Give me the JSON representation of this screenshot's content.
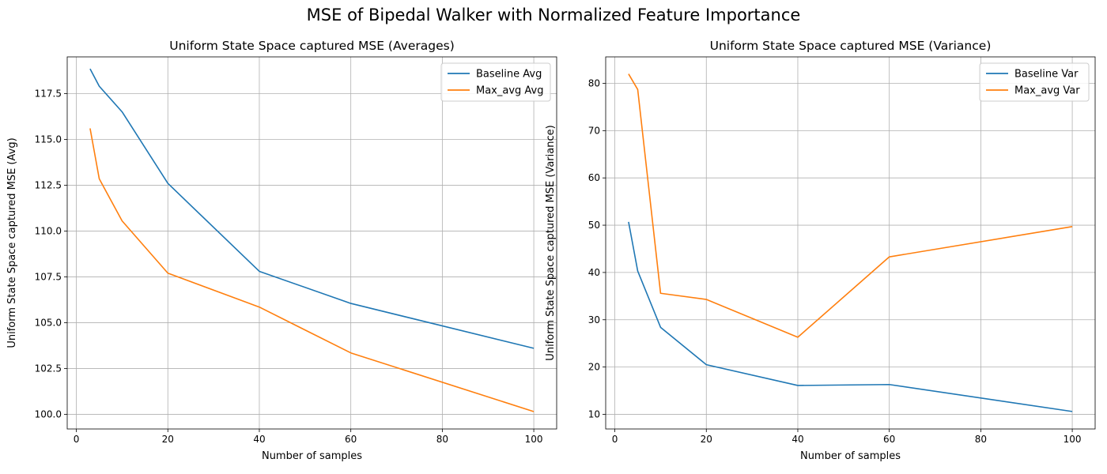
{
  "figure": {
    "suptitle": "MSE of Bipedal Walker with Normalized Feature Importance"
  },
  "chart_data": [
    {
      "type": "line",
      "title": "Uniform State Space captured MSE (Averages)",
      "xlabel": "Number of samples",
      "ylabel": "Uniform State Space captured MSE (Avg)",
      "xlim": [
        -2,
        105
      ],
      "ylim": [
        99.2,
        119.5
      ],
      "xticks": [
        0,
        20,
        40,
        60,
        80,
        100
      ],
      "yticks": [
        100.0,
        102.5,
        105.0,
        107.5,
        110.0,
        112.5,
        115.0,
        117.5
      ],
      "ytick_labels": [
        "100.0",
        "102.5",
        "105.0",
        "107.5",
        "110.0",
        "112.5",
        "115.0",
        "117.5"
      ],
      "grid": true,
      "legend_position": "upper right",
      "series": [
        {
          "name": "Baseline Avg",
          "color": "#1f77b4",
          "x": [
            3,
            5,
            10,
            20,
            40,
            60,
            100
          ],
          "y": [
            118.85,
            117.9,
            116.5,
            112.6,
            107.8,
            106.05,
            103.6
          ]
        },
        {
          "name": "Max_avg Avg",
          "color": "#ff7f0e",
          "x": [
            3,
            5,
            10,
            20,
            40,
            60,
            100
          ],
          "y": [
            115.6,
            112.85,
            110.55,
            107.7,
            105.85,
            103.35,
            100.15
          ]
        }
      ]
    },
    {
      "type": "line",
      "title": "Uniform State Space captured MSE (Variance)",
      "xlabel": "Number of samples",
      "ylabel": "Uniform State Space captured MSE (Variance)",
      "xlim": [
        -2,
        105
      ],
      "ylim": [
        6.9,
        85.6
      ],
      "xticks": [
        0,
        20,
        40,
        60,
        80,
        100
      ],
      "yticks": [
        10,
        20,
        30,
        40,
        50,
        60,
        70,
        80
      ],
      "ytick_labels": [
        "10",
        "20",
        "30",
        "40",
        "50",
        "60",
        "70",
        "80"
      ],
      "grid": true,
      "legend_position": "upper right",
      "series": [
        {
          "name": "Baseline Var",
          "color": "#1f77b4",
          "x": [
            3,
            5,
            10,
            20,
            40,
            60,
            100
          ],
          "y": [
            50.7,
            40.3,
            28.4,
            20.5,
            16.1,
            16.3,
            10.6
          ]
        },
        {
          "name": "Max_avg Var",
          "color": "#ff7f0e",
          "x": [
            3,
            5,
            10,
            20,
            40,
            60,
            100
          ],
          "y": [
            82.0,
            78.7,
            35.6,
            34.3,
            26.3,
            43.3,
            49.7
          ]
        }
      ]
    }
  ]
}
